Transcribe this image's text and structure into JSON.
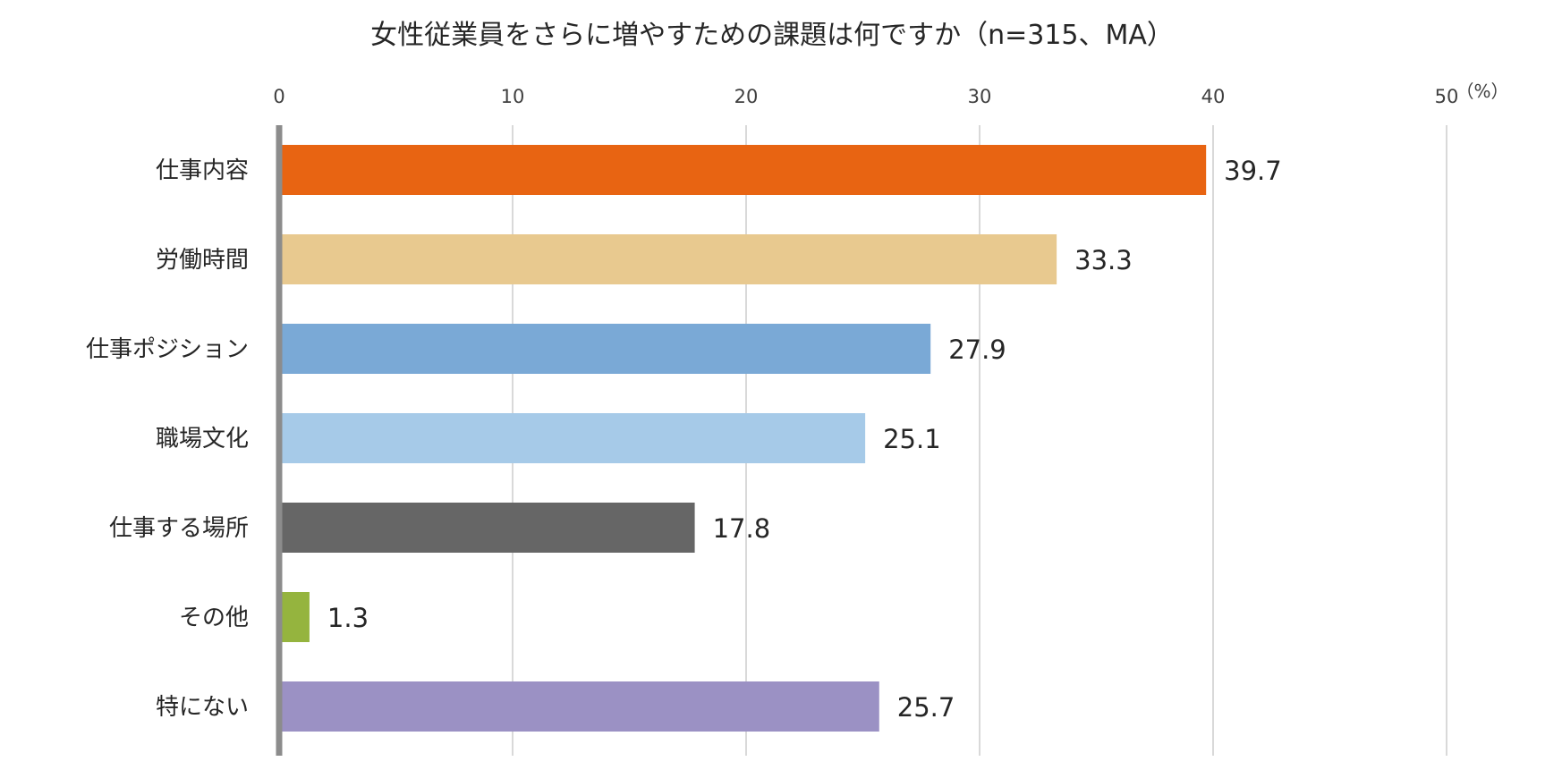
{
  "chart_data": {
    "type": "bar",
    "orientation": "horizontal",
    "title": "女性従業員をさらに増やすための課題は何ですか（n=315、MA）",
    "unit_label": "（%）",
    "xlim": [
      0,
      50
    ],
    "ticks": [
      "0",
      "10",
      "20",
      "30",
      "40",
      "50"
    ],
    "grid": true,
    "categories": [
      "仕事内容",
      "労働時間",
      "仕事ポジション",
      "職場文化",
      "仕事する場所",
      "その他",
      "特にない"
    ],
    "values": [
      39.7,
      33.3,
      27.9,
      25.1,
      17.8,
      1.3,
      25.7
    ],
    "labels": [
      "39.7",
      "33.3",
      "27.9",
      "25.1",
      "17.8",
      "1.3",
      "25.7"
    ],
    "colors": [
      "#E86412",
      "#E8C98F",
      "#7AA9D6",
      "#A6CAE8",
      "#666666",
      "#95B43E",
      "#9B91C4"
    ],
    "gridline_color": "#D9D9D9",
    "axis_color": "#8C8C8C"
  }
}
